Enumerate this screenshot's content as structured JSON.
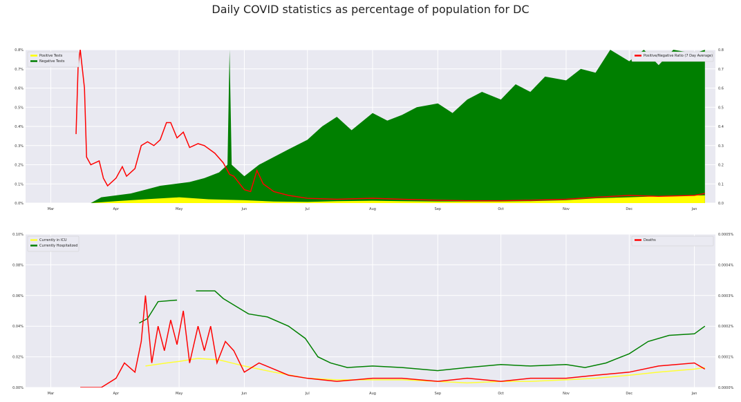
{
  "title": "Daily COVID statistics as percentage of population for DC",
  "colors": {
    "plot_bg": "#e9e9f1",
    "grid": "#ffffff",
    "positive": "#ffff00",
    "negative": "#007f00",
    "ratio": "#ff0000",
    "icu": "#ffff33",
    "hospitalized": "#008000",
    "deaths": "#ff0000"
  },
  "chart_data": [
    {
      "type": "area",
      "x_ticks": [
        "Mar",
        "Apr",
        "May",
        "Jun",
        "Jul",
        "Aug",
        "Sep",
        "Oct",
        "Nov",
        "Dec",
        "Jan"
      ],
      "y_left": {
        "ticks": [
          "0.0%",
          "0.1%",
          "0.2%",
          "0.3%",
          "0.4%",
          "0.5%",
          "0.6%",
          "0.7%",
          "0.8%"
        ],
        "lim": [
          0,
          0.8
        ]
      },
      "y_right": {
        "ticks": [
          "0.0",
          "0.1",
          "0.2",
          "0.3",
          "0.4",
          "0.5",
          "0.6",
          "0.7",
          "0.8"
        ],
        "lim": [
          0,
          0.8
        ]
      },
      "grid": true,
      "legend_left": {
        "placement": "top-left",
        "entries": [
          {
            "label": "Positive Tests",
            "color": "#ffff00"
          },
          {
            "label": "Negative Tests",
            "color": "#007f00"
          }
        ]
      },
      "legend_right": {
        "placement": "top-right",
        "entries": [
          {
            "label": "Positive/Negative Ratio (7 Day Average)",
            "color": "#ff0000"
          }
        ]
      },
      "series": [
        {
          "name": "Negative Tests",
          "kind": "area",
          "axis": "left",
          "points": [
            [
              "Mar 20",
              0
            ],
            [
              "Mar 25",
              0.03
            ],
            [
              "Apr 1",
              0.04
            ],
            [
              "Apr 8",
              0.05
            ],
            [
              "Apr 15",
              0.07
            ],
            [
              "Apr 22",
              0.09
            ],
            [
              "Apr 29",
              0.1
            ],
            [
              "May 6",
              0.11
            ],
            [
              "May 13",
              0.13
            ],
            [
              "May 20",
              0.16
            ],
            [
              "May 24",
              0.2
            ],
            [
              "May 25",
              0.8
            ],
            [
              "May 26",
              0.2
            ],
            [
              "Jun 1",
              0.14
            ],
            [
              "Jun 8",
              0.2
            ],
            [
              "Jun 15",
              0.24
            ],
            [
              "Jun 22",
              0.28
            ],
            [
              "Jul 1",
              0.33
            ],
            [
              "Jul 8",
              0.4
            ],
            [
              "Jul 15",
              0.45
            ],
            [
              "Jul 22",
              0.38
            ],
            [
              "Aug 1",
              0.47
            ],
            [
              "Aug 8",
              0.43
            ],
            [
              "Aug 15",
              0.46
            ],
            [
              "Aug 22",
              0.5
            ],
            [
              "Sep 1",
              0.52
            ],
            [
              "Sep 8",
              0.47
            ],
            [
              "Sep 15",
              0.54
            ],
            [
              "Sep 22",
              0.58
            ],
            [
              "Oct 1",
              0.54
            ],
            [
              "Oct 8",
              0.62
            ],
            [
              "Oct 15",
              0.58
            ],
            [
              "Oct 22",
              0.66
            ],
            [
              "Nov 1",
              0.64
            ],
            [
              "Nov 8",
              0.7
            ],
            [
              "Nov 15",
              0.68
            ],
            [
              "Nov 22",
              0.8
            ],
            [
              "Dec 1",
              0.74
            ],
            [
              "Dec 8",
              0.8
            ],
            [
              "Dec 15",
              0.72
            ],
            [
              "Dec 22",
              0.8
            ],
            [
              "Jan 1",
              0.78
            ],
            [
              "Jan 6",
              0.8
            ]
          ]
        },
        {
          "name": "Positive Tests",
          "kind": "area",
          "axis": "left",
          "points": [
            [
              "Mar 20",
              0
            ],
            [
              "Apr 1",
              0.01
            ],
            [
              "Apr 15",
              0.02
            ],
            [
              "May 1",
              0.03
            ],
            [
              "May 15",
              0.02
            ],
            [
              "Jun 1",
              0.015
            ],
            [
              "Jun 15",
              0.008
            ],
            [
              "Jul 1",
              0.006
            ],
            [
              "Jul 15",
              0.01
            ],
            [
              "Aug 1",
              0.012
            ],
            [
              "Aug 15",
              0.01
            ],
            [
              "Sep 1",
              0.008
            ],
            [
              "Sep 15",
              0.008
            ],
            [
              "Oct 1",
              0.008
            ],
            [
              "Oct 15",
              0.01
            ],
            [
              "Nov 1",
              0.015
            ],
            [
              "Nov 15",
              0.025
            ],
            [
              "Dec 1",
              0.03
            ],
            [
              "Dec 15",
              0.035
            ],
            [
              "Jan 1",
              0.04
            ],
            [
              "Jan 6",
              0.04
            ]
          ]
        },
        {
          "name": "Positive/Negative Ratio (7 Day Average)",
          "kind": "line",
          "axis": "right",
          "points": [
            [
              "Mar 13",
              0.36
            ],
            [
              "Mar 14",
              0.72
            ],
            [
              "Mar 15",
              0.8
            ],
            [
              "Mar 17",
              0.6
            ],
            [
              "Mar 18",
              0.24
            ],
            [
              "Mar 20",
              0.2
            ],
            [
              "Mar 24",
              0.22
            ],
            [
              "Mar 26",
              0.13
            ],
            [
              "Mar 28",
              0.09
            ],
            [
              "Apr 1",
              0.13
            ],
            [
              "Apr 4",
              0.19
            ],
            [
              "Apr 6",
              0.14
            ],
            [
              "Apr 10",
              0.18
            ],
            [
              "Apr 13",
              0.3
            ],
            [
              "Apr 16",
              0.32
            ],
            [
              "Apr 19",
              0.3
            ],
            [
              "Apr 22",
              0.33
            ],
            [
              "Apr 25",
              0.42
            ],
            [
              "Apr 27",
              0.42
            ],
            [
              "Apr 30",
              0.34
            ],
            [
              "May 3",
              0.37
            ],
            [
              "May 6",
              0.29
            ],
            [
              "May 10",
              0.31
            ],
            [
              "May 13",
              0.3
            ],
            [
              "May 18",
              0.26
            ],
            [
              "May 22",
              0.21
            ],
            [
              "May 25",
              0.15
            ],
            [
              "May 27",
              0.14
            ],
            [
              "Jun 1",
              0.07
            ],
            [
              "Jun 4",
              0.06
            ],
            [
              "Jun 7",
              0.17
            ],
            [
              "Jun 10",
              0.1
            ],
            [
              "Jun 15",
              0.06
            ],
            [
              "Jun 22",
              0.04
            ],
            [
              "Jul 1",
              0.025
            ],
            [
              "Jul 15",
              0.02
            ],
            [
              "Aug 1",
              0.025
            ],
            [
              "Aug 15",
              0.02
            ],
            [
              "Sep 1",
              0.015
            ],
            [
              "Sep 15",
              0.012
            ],
            [
              "Oct 1",
              0.012
            ],
            [
              "Oct 15",
              0.015
            ],
            [
              "Nov 1",
              0.02
            ],
            [
              "Nov 15",
              0.03
            ],
            [
              "Dec 1",
              0.04
            ],
            [
              "Dec 15",
              0.035
            ],
            [
              "Jan 1",
              0.04
            ],
            [
              "Jan 6",
              0.05
            ]
          ]
        }
      ]
    },
    {
      "type": "line",
      "x_ticks": [
        "Mar",
        "Apr",
        "May",
        "Jun",
        "Jul",
        "Aug",
        "Sep",
        "Oct",
        "Nov",
        "Dec",
        "Jan"
      ],
      "y_left": {
        "ticks": [
          "0.00%",
          "0.02%",
          "0.04%",
          "0.06%",
          "0.08%",
          "0.10%"
        ],
        "lim": [
          0,
          0.1
        ]
      },
      "y_right": {
        "ticks": [
          "0.0000%",
          "0.0001%",
          "0.0002%",
          "0.0003%",
          "0.0004%",
          "0.0005%"
        ],
        "lim": [
          0,
          0.0005
        ]
      },
      "grid": true,
      "legend_left": {
        "placement": "top-left",
        "entries": [
          {
            "label": "Currently in ICU",
            "color": "#ffff33"
          },
          {
            "label": "Currently Hospitalized",
            "color": "#008000"
          }
        ]
      },
      "legend_right": {
        "placement": "top-right",
        "entries": [
          {
            "label": "Deaths",
            "color": "#ff0000"
          }
        ]
      },
      "series": [
        {
          "name": "Currently in ICU",
          "axis": "left",
          "points": [
            [
              "Apr 15",
              0.014
            ],
            [
              "Apr 25",
              0.016
            ],
            [
              "May 1",
              0.017
            ],
            [
              "May 10",
              0.019
            ],
            [
              "May 20",
              0.018
            ],
            [
              "Jun 1",
              0.014
            ],
            [
              "Jun 15",
              0.01
            ],
            [
              "Jul 1",
              0.006
            ],
            [
              "Jul 15",
              0.005
            ],
            [
              "Aug 1",
              0.005
            ],
            [
              "Aug 15",
              0.005
            ],
            [
              "Sep 1",
              0.004
            ],
            [
              "Sep 15",
              0.003
            ],
            [
              "Oct 1",
              0.004
            ],
            [
              "Oct 15",
              0.004
            ],
            [
              "Nov 1",
              0.005
            ],
            [
              "Nov 15",
              0.006
            ],
            [
              "Dec 1",
              0.008
            ],
            [
              "Dec 15",
              0.01
            ],
            [
              "Jan 1",
              0.012
            ],
            [
              "Jan 6",
              0.013
            ]
          ]
        },
        {
          "name": "Currently Hospitalized",
          "axis": "left",
          "points": [
            [
              "Apr 12",
              0.042
            ],
            [
              "Apr 16",
              0.045
            ],
            [
              "Apr 21",
              0.056
            ],
            [
              "Apr 30",
              0.057
            ],
            [
              "May 1",
              null
            ],
            [
              "May 9",
              0.063
            ],
            [
              "May 18",
              0.063
            ],
            [
              "May 22",
              0.058
            ],
            [
              "May 28",
              0.053
            ],
            [
              "Jun 3",
              0.048
            ],
            [
              "Jun 12",
              0.046
            ],
            [
              "Jun 22",
              0.04
            ],
            [
              "Jun 30",
              0.032
            ],
            [
              "Jul 6",
              0.02
            ],
            [
              "Jul 12",
              0.016
            ],
            [
              "Jul 20",
              0.013
            ],
            [
              "Aug 1",
              0.014
            ],
            [
              "Aug 15",
              0.013
            ],
            [
              "Sep 1",
              0.011
            ],
            [
              "Sep 15",
              0.013
            ],
            [
              "Oct 1",
              0.015
            ],
            [
              "Oct 15",
              0.014
            ],
            [
              "Nov 1",
              0.015
            ],
            [
              "Nov 10",
              0.013
            ],
            [
              "Nov 20",
              0.016
            ],
            [
              "Dec 1",
              0.022
            ],
            [
              "Dec 10",
              0.03
            ],
            [
              "Dec 20",
              0.034
            ],
            [
              "Jan 1",
              0.035
            ],
            [
              "Jan 6",
              0.04
            ]
          ]
        },
        {
          "name": "Deaths",
          "axis": "right",
          "points": [
            [
              "Mar 15",
              0
            ],
            [
              "Mar 25",
              0
            ],
            [
              "Apr 1",
              3e-05
            ],
            [
              "Apr 5",
              8e-05
            ],
            [
              "Apr 10",
              5e-05
            ],
            [
              "Apr 13",
              0.00015
            ],
            [
              "Apr 15",
              0.0003
            ],
            [
              "Apr 18",
              8e-05
            ],
            [
              "Apr 21",
              0.0002
            ],
            [
              "Apr 24",
              0.00012
            ],
            [
              "Apr 27",
              0.00022
            ],
            [
              "Apr 30",
              0.00014
            ],
            [
              "May 3",
              0.00025
            ],
            [
              "May 6",
              8e-05
            ],
            [
              "May 10",
              0.0002
            ],
            [
              "May 13",
              0.00012
            ],
            [
              "May 16",
              0.0002
            ],
            [
              "May 19",
              8e-05
            ],
            [
              "May 23",
              0.00015
            ],
            [
              "May 27",
              0.00012
            ],
            [
              "Jun 1",
              5e-05
            ],
            [
              "Jun 8",
              8e-05
            ],
            [
              "Jun 15",
              6e-05
            ],
            [
              "Jun 22",
              4e-05
            ],
            [
              "Jul 1",
              3e-05
            ],
            [
              "Jul 15",
              2e-05
            ],
            [
              "Aug 1",
              3e-05
            ],
            [
              "Aug 15",
              3e-05
            ],
            [
              "Sep 1",
              2e-05
            ],
            [
              "Sep 15",
              3e-05
            ],
            [
              "Oct 1",
              2e-05
            ],
            [
              "Oct 15",
              3e-05
            ],
            [
              "Nov 1",
              3e-05
            ],
            [
              "Nov 15",
              4e-05
            ],
            [
              "Dec 1",
              5e-05
            ],
            [
              "Dec 15",
              7e-05
            ],
            [
              "Jan 1",
              8e-05
            ],
            [
              "Jan 6",
              6e-05
            ]
          ]
        }
      ]
    }
  ]
}
